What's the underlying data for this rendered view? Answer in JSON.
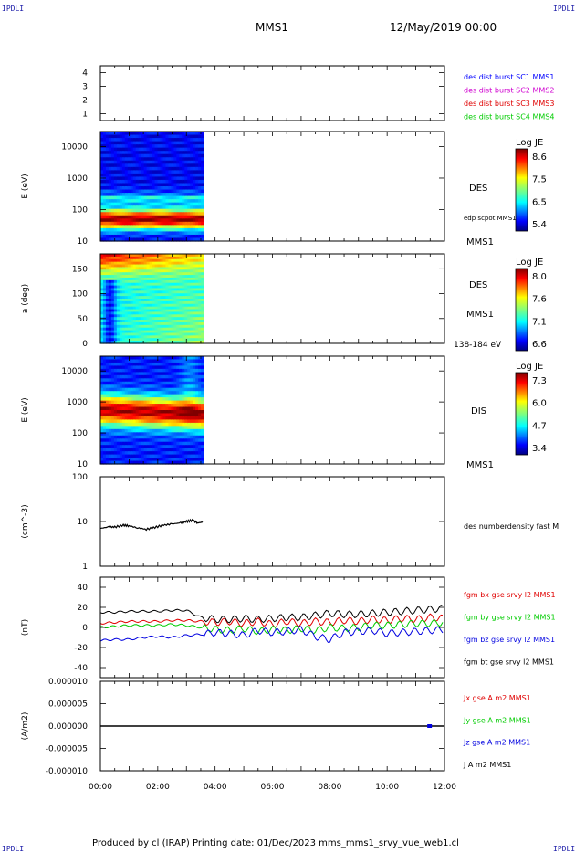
{
  "header": {
    "corner_label": "IPDLI",
    "spacecraft": "MMS1",
    "date": "12/May/2019 00:00"
  },
  "footer": {
    "text": "Produced by cl (IRAP)   Printing date: 01/Dec/2023   mms_mms1_srvy_vue_web1.cl"
  },
  "chart_data": [
    {
      "type": "line",
      "panel": "burst-coverage",
      "ylim": [
        0.5,
        4.5
      ],
      "yticks": [
        "1",
        "2",
        "3",
        "4"
      ],
      "legend": [
        {
          "text": "des dist burst SC1 MMS1",
          "color": "#0000ff"
        },
        {
          "text": "des dist burst SC2 MMS2",
          "color": "#d000d0"
        },
        {
          "text": "des dist burst SC3 MMS3",
          "color": "#e00000"
        },
        {
          "text": "des dist burst SC4 MMS4",
          "color": "#00cc00"
        }
      ]
    },
    {
      "type": "heatmap",
      "panel": "des-energy-spectrogram",
      "ylabel": "E (eV)",
      "yscale": "log",
      "ylim": [
        10,
        30000
      ],
      "yticks": [
        "10",
        "100",
        "1000",
        "10000"
      ],
      "data_end_hour": 3.6,
      "labels": [
        "DES",
        "edp scpot MMS1",
        "MMS1"
      ],
      "colorbar": {
        "title": "Log JE",
        "ticks": [
          "8.6",
          "7.5",
          "6.5",
          "5.4"
        ]
      }
    },
    {
      "type": "heatmap",
      "panel": "des-pitch-angle",
      "ylabel": "a (deg)",
      "ylim": [
        0,
        180
      ],
      "yticks": [
        "0",
        "50",
        "100",
        "150"
      ],
      "data_end_hour": 3.6,
      "labels": [
        "DES",
        "MMS1",
        "138-184 eV"
      ],
      "colorbar": {
        "title": "Log JE",
        "ticks": [
          "8.0",
          "7.6",
          "7.1",
          "6.6"
        ]
      }
    },
    {
      "type": "heatmap",
      "panel": "dis-energy-spectrogram",
      "ylabel": "E (eV)",
      "yscale": "log",
      "ylim": [
        10,
        30000
      ],
      "yticks": [
        "10",
        "100",
        "1000",
        "10000"
      ],
      "data_end_hour": 3.6,
      "labels": [
        "DIS",
        "MMS1"
      ],
      "colorbar": {
        "title": "Log JE",
        "ticks": [
          "7.3",
          "6.0",
          "4.7",
          "3.4"
        ]
      }
    },
    {
      "type": "line",
      "panel": "density",
      "ylabel": "(cm^-3)",
      "yscale": "log",
      "ylim": [
        1,
        100
      ],
      "yticks": [
        "1",
        "10",
        "100"
      ],
      "series": [
        {
          "name": "des numberdensity fast M",
          "color": "#000000",
          "x": [
            0.0,
            0.3,
            0.5,
            0.8,
            1.0,
            1.3,
            1.6,
            1.9,
            2.2,
            2.5,
            2.8,
            3.0,
            3.2,
            3.4,
            3.6
          ],
          "y": [
            7.0,
            7.6,
            7.5,
            8.3,
            8.0,
            7.2,
            6.7,
            7.4,
            8.3,
            8.8,
            9.3,
            10.0,
            10.6,
            9.3,
            9.8
          ]
        }
      ]
    },
    {
      "type": "line",
      "panel": "magnetic-field",
      "ylabel": "(nT)",
      "ylim": [
        -50,
        50
      ],
      "yticks": [
        "-40",
        "-20",
        "0",
        "20",
        "40"
      ],
      "x": [
        0.0,
        0.5,
        1.0,
        1.5,
        2.0,
        2.5,
        3.0,
        3.5,
        4.0,
        4.5,
        5.0,
        5.5,
        6.0,
        6.5,
        7.0,
        7.5,
        8.0,
        8.5,
        9.0,
        9.5,
        10.0,
        10.5,
        11.0,
        11.5,
        12.0
      ],
      "series": [
        {
          "name": "fgm bx gse srvy l2 MMS1",
          "color": "#e00000",
          "y": [
            4,
            5,
            6,
            6,
            6,
            7,
            7,
            6,
            5,
            6,
            4,
            6,
            3,
            6,
            4,
            6,
            5,
            7,
            6,
            8,
            7,
            9,
            8,
            10,
            9
          ]
        },
        {
          "name": "fgm by gse srvy l2 MMS1",
          "color": "#00cc00",
          "y": [
            0,
            1,
            2,
            2,
            2,
            3,
            2,
            0,
            -2,
            -3,
            -1,
            -4,
            -2,
            -3,
            -1,
            -3,
            0,
            -1,
            0,
            2,
            2,
            3,
            4,
            4,
            5
          ]
        },
        {
          "name": "fgm bz gse srvy l2 MMS1",
          "color": "#0000e0",
          "y": [
            -13,
            -12,
            -12,
            -10,
            -9,
            -10,
            -8,
            -7,
            -5,
            -6,
            -8,
            -3,
            -5,
            -4,
            -2,
            -9,
            -12,
            -5,
            -4,
            -3,
            -6,
            -5,
            -4,
            -3,
            -2
          ]
        },
        {
          "name": "fgm bt gse srvy l2 MMS1",
          "color": "#000000",
          "y": [
            15,
            15,
            16,
            16,
            16,
            17,
            17,
            10,
            8,
            8,
            9,
            8,
            9,
            10,
            10,
            12,
            14,
            13,
            13,
            14,
            15,
            16,
            17,
            18,
            19
          ]
        }
      ]
    },
    {
      "type": "line",
      "panel": "current-density",
      "ylabel": "(A/m2)",
      "ylim": [
        -1e-05,
        1e-05
      ],
      "yticks": [
        "-0.000010",
        "-0.000005",
        "0.000000",
        "0.000005",
        "0.000010"
      ],
      "series": [
        {
          "name": "Jx gse A m2 MMS1",
          "color": "#e00000"
        },
        {
          "name": "Jy gse A m2 MMS1",
          "color": "#00cc00"
        },
        {
          "name": "Jz gse A m2 MMS1",
          "color": "#0000e0"
        },
        {
          "name": "J A m2 MMS1",
          "color": "#000000"
        }
      ]
    }
  ],
  "time_axis": {
    "xlim": [
      0,
      12
    ],
    "tick_labels": [
      "00:00",
      "02:00",
      "04:00",
      "06:00",
      "08:00",
      "10:00",
      "12:00"
    ]
  }
}
